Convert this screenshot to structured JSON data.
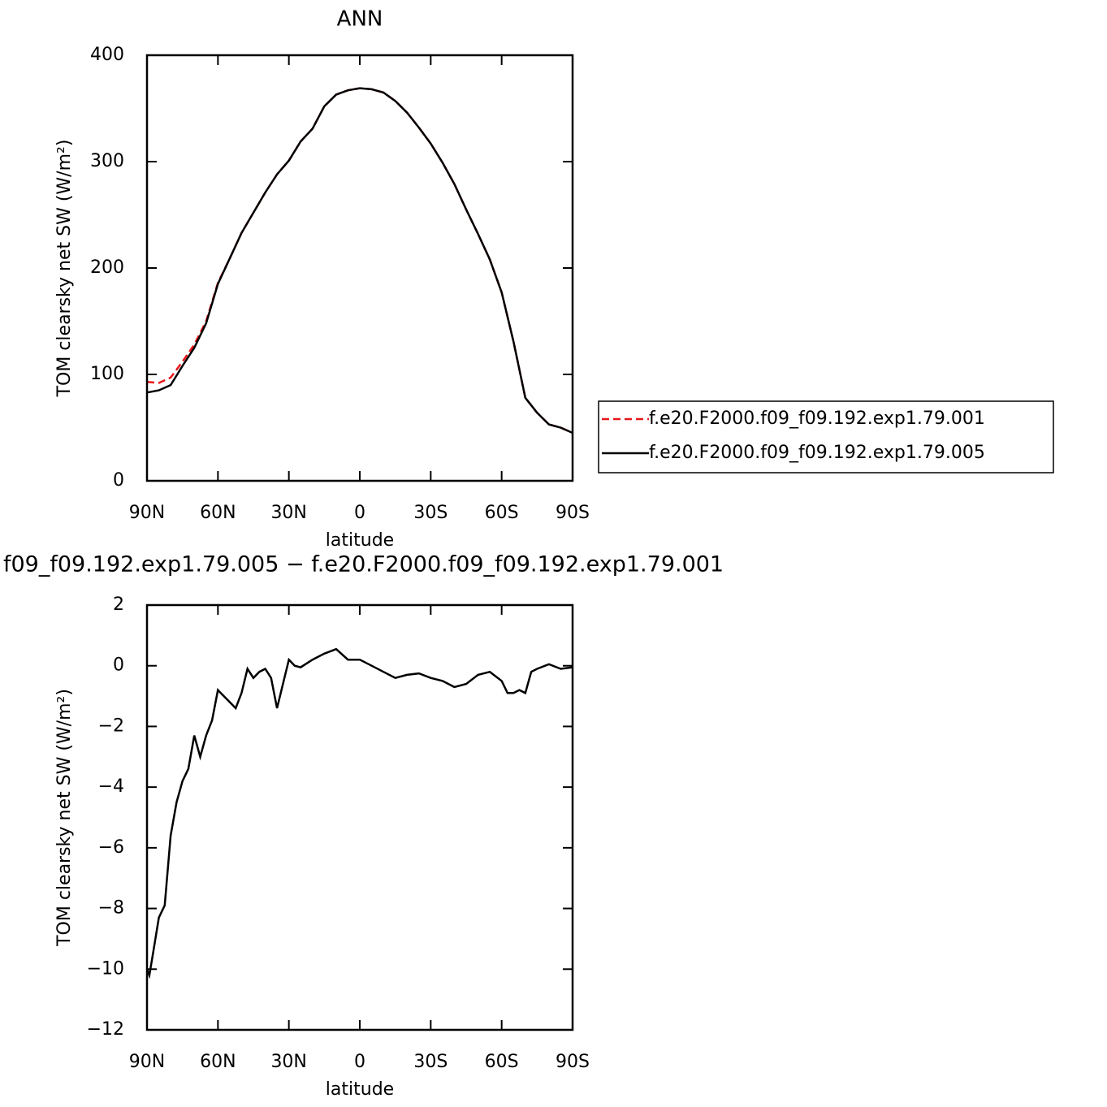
{
  "chart_data": [
    {
      "type": "line",
      "title": "ANN",
      "xlabel": "latitude",
      "ylabel": "TOM clearsky net SW (W/m²)",
      "x": [
        90,
        85,
        80,
        75,
        70,
        65,
        60,
        55,
        50,
        45,
        40,
        35,
        30,
        25,
        20,
        15,
        10,
        5,
        0,
        -5,
        -10,
        -15,
        -20,
        -25,
        -30,
        -35,
        -40,
        -45,
        -50,
        -55,
        -60,
        -65,
        -70,
        -75,
        -80,
        -85,
        -90
      ],
      "series": [
        {
          "name": "f.e20.F2000.f09_f09.192.exp1.79.001",
          "color": "#e8161b",
          "dashed": true,
          "values": [
            93,
            92,
            97,
            112,
            128,
            150,
            186,
            209,
            233,
            252,
            271,
            288,
            301,
            319,
            331,
            352,
            363,
            367,
            369,
            368,
            365,
            357,
            346,
            332,
            317,
            299,
            279,
            255,
            232,
            208,
            177,
            131,
            78,
            64,
            53,
            50,
            45
          ]
        },
        {
          "name": "f.e20.F2000.f09_f09.192.exp1.79.005",
          "color": "#000000",
          "dashed": false,
          "values": [
            83,
            85,
            90,
            108,
            125,
            148,
            185,
            209,
            233,
            252,
            271,
            288,
            301,
            319,
            331,
            352,
            363,
            367,
            369,
            368,
            365,
            357,
            346,
            332,
            317,
            299,
            279,
            255,
            232,
            208,
            177,
            131,
            78,
            64,
            53,
            50,
            45
          ]
        }
      ],
      "xlim": [
        90,
        -90
      ],
      "xticks": [
        {
          "value": 90,
          "label": "90N"
        },
        {
          "value": 60,
          "label": "60N"
        },
        {
          "value": 30,
          "label": "30N"
        },
        0,
        {
          "value": -30,
          "label": "30S"
        },
        {
          "value": -60,
          "label": "60S"
        },
        {
          "value": -90,
          "label": "90S"
        }
      ],
      "ylim": [
        0,
        400
      ],
      "yticks": [
        0,
        100,
        200,
        300,
        400
      ],
      "legend": "right"
    },
    {
      "type": "line",
      "title": "f09_f09.192.exp1.79.005 − f.e20.F2000.f09_f09.192.exp1.79.001",
      "xlabel": "latitude",
      "ylabel": "TOM clearsky net SW (W/m²)",
      "x": [
        90,
        89,
        87.5,
        85,
        82.5,
        80,
        77.5,
        75,
        72.5,
        70,
        67.5,
        65,
        62.5,
        60,
        57.5,
        55,
        52.5,
        50,
        47.5,
        45,
        42.5,
        40,
        37.5,
        35,
        32.5,
        30,
        27.5,
        25,
        20,
        15,
        10,
        5,
        0,
        -5,
        -10,
        -15,
        -20,
        -25,
        -30,
        -35,
        -40,
        -45,
        -50,
        -55,
        -60,
        -62.5,
        -65,
        -67.5,
        -70,
        -72.5,
        -75,
        -80,
        -85,
        -90
      ],
      "series": [
        {
          "name": null,
          "color": "#000000",
          "dashed": false,
          "values": [
            -10.0,
            -10.2,
            -9.5,
            -8.3,
            -7.9,
            -5.6,
            -4.5,
            -3.8,
            -3.4,
            -2.3,
            -3.0,
            -2.3,
            -1.8,
            -0.8,
            -1.0,
            -1.2,
            -1.4,
            -0.9,
            -0.1,
            -0.4,
            -0.2,
            -0.1,
            -0.4,
            -1.4,
            -0.6,
            0.2,
            0.0,
            -0.05,
            0.2,
            0.4,
            0.55,
            0.2,
            0.2,
            0.0,
            -0.2,
            -0.4,
            -0.3,
            -0.25,
            -0.4,
            -0.5,
            -0.7,
            -0.6,
            -0.3,
            -0.2,
            -0.5,
            -0.9,
            -0.9,
            -0.8,
            -0.9,
            -0.2,
            -0.1,
            0.05,
            -0.1,
            -0.05
          ]
        }
      ],
      "xlim": [
        90,
        -90
      ],
      "xticks": [
        {
          "value": 90,
          "label": "90N"
        },
        {
          "value": 60,
          "label": "60N"
        },
        {
          "value": 30,
          "label": "30N"
        },
        0,
        {
          "value": -30,
          "label": "30S"
        },
        {
          "value": -60,
          "label": "60S"
        },
        {
          "value": -90,
          "label": "90S"
        }
      ],
      "ylim": [
        -12,
        2
      ],
      "yticks": [
        {
          "value": -12,
          "label": "−12"
        },
        {
          "value": -10,
          "label": "−10"
        },
        {
          "value": -8,
          "label": "−8"
        },
        {
          "value": -6,
          "label": "−6"
        },
        {
          "value": -4,
          "label": "−4"
        },
        {
          "value": -2,
          "label": "−2"
        },
        0,
        2
      ]
    }
  ]
}
